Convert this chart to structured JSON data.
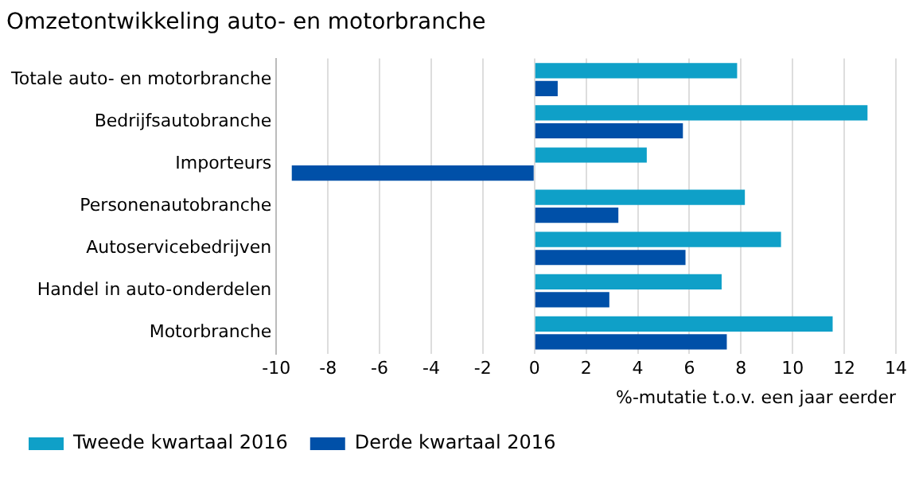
{
  "chart_data": {
    "type": "bar",
    "orientation": "horizontal",
    "title": "Omzetontwikkeling auto- en motorbranche",
    "xlabel": "%-mutatie t.o.v. een jaar eerder",
    "categories": [
      "Totale auto- en motorbranche",
      "Bedrijfsautobranche",
      "Importeurs",
      "Personenautobranche",
      "Autoservicebedrijven",
      "Handel in auto-onderdelen",
      "Motorbranche"
    ],
    "series": [
      {
        "name": "Tweede kwartaal 2016",
        "color": "#0fa0c8",
        "values": [
          7.85,
          12.9,
          4.35,
          8.15,
          9.55,
          7.25,
          11.55
        ]
      },
      {
        "name": "Derde kwartaal 2016",
        "color": "#0050a8",
        "values": [
          0.9,
          5.75,
          -9.4,
          3.25,
          5.85,
          2.9,
          7.45
        ]
      }
    ],
    "xlim": [
      -10,
      14
    ],
    "xticks": [
      -10,
      -8,
      -6,
      -4,
      -2,
      0,
      2,
      4,
      6,
      8,
      10,
      12,
      14
    ],
    "grid": "x",
    "legend": "bottom left"
  }
}
